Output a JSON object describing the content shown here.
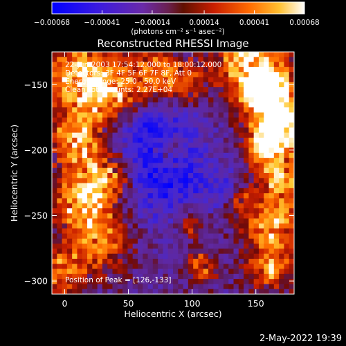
{
  "chart_data": {
    "type": "heatmap",
    "title": "Reconstructed RHESSI Image",
    "xlabel": "Heliocentric X (arcsec)",
    "ylabel": "Heliocentric Y (arcsec)",
    "xlim": [
      -10,
      180
    ],
    "ylim": [
      -310,
      -125
    ],
    "x_ticks": [
      0,
      50,
      100,
      150
    ],
    "y_ticks": [
      -150,
      -200,
      -250,
      -300
    ],
    "colorbar": {
      "min": -0.00068,
      "max": 0.00068,
      "tick_values": [
        -0.00068,
        -0.00041,
        -0.00014,
        0.00014,
        0.00041,
        0.00068
      ],
      "tick_labels": [
        "-0.00068",
        "-0.00041",
        "-0.00014",
        "0.00014",
        "0.00041",
        "0.00068"
      ],
      "unit_label": "(photons cm⁻² s⁻¹ asec⁻²)"
    },
    "annotations": [
      "22-Jun-2003 17:54:12.000 to 18:00:12.000",
      "Detectors: 3F 4F 5F 6F 7F 8F, Att 0",
      "Energy Range: 25.0 - 50.0 keV",
      "Clean    Total counts: 2.27E+04"
    ],
    "peak_label": "Position of Peak = [126,-133]",
    "peak_position": [
      126,
      -133
    ]
  },
  "footer": {
    "date": "2-May-2022 19:39"
  },
  "colors": {
    "background": "#000000",
    "colormap": [
      "#0000ff",
      "#5520b8",
      "#4d1a9a",
      "#7a2a8f",
      "#a01000",
      "#dd3300",
      "#ff7700",
      "#ffcc33",
      "#ffffff"
    ]
  }
}
